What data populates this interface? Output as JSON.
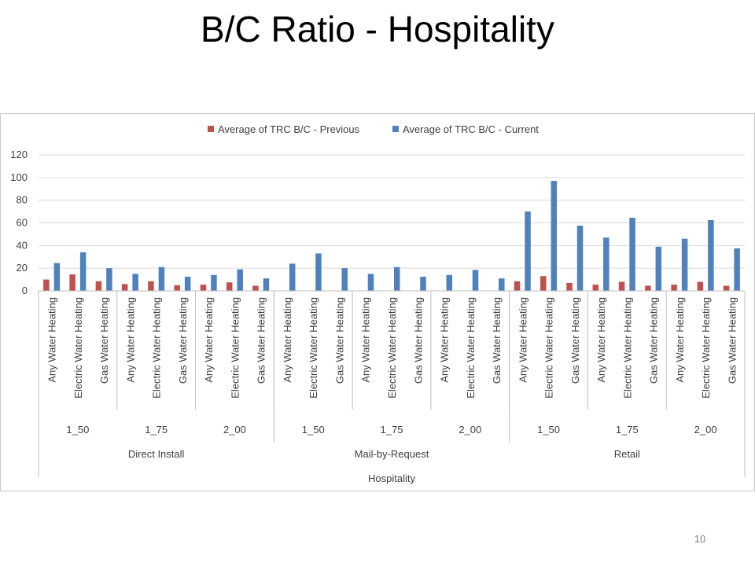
{
  "slide": {
    "title": "B/C Ratio - Hospitality",
    "page_number": "10"
  },
  "chart_data": {
    "type": "bar",
    "title": "",
    "xlabel": "",
    "ylabel": "",
    "ylim": [
      0,
      120
    ],
    "yticks": [
      0,
      20,
      40,
      60,
      80,
      100,
      120
    ],
    "legend_position": "top-center",
    "grid": true,
    "categories": [
      "Any Water Heating",
      "Electric Water Heating",
      "Gas Water Heating",
      "Any Water Heating",
      "Electric Water Heating",
      "Gas Water Heating",
      "Any Water Heating",
      "Electric Water Heating",
      "Gas Water Heating",
      "Any Water Heating",
      "Electric Water Heating",
      "Gas Water Heating",
      "Any Water Heating",
      "Electric Water Heating",
      "Gas Water Heating",
      "Any Water Heating",
      "Electric Water Heating",
      "Gas Water Heating",
      "Any Water Heating",
      "Electric Water Heating",
      "Gas Water Heating",
      "Any Water Heating",
      "Electric Water Heating",
      "Gas Water Heating",
      "Any Water Heating",
      "Electric Water Heating",
      "Gas Water Heating"
    ],
    "level1_groups": [
      "1_50",
      "1_75",
      "2_00",
      "1_50",
      "1_75",
      "2_00",
      "1_50",
      "1_75",
      "2_00"
    ],
    "level2_groups": [
      "Direct Install",
      "Mail-by-Request",
      "Retail"
    ],
    "level3_group": "Hospitality",
    "series": [
      {
        "name": "Average of TRC B/C - Previous",
        "color": "#c0504d",
        "values": [
          10,
          14.5,
          8.5,
          6,
          8.5,
          5,
          5.5,
          7.5,
          4.5,
          0,
          0,
          0,
          0,
          0,
          0,
          0,
          0,
          0,
          8.5,
          13,
          7,
          5.5,
          8,
          4.5,
          5.5,
          8,
          4.5
        ]
      },
      {
        "name": "Average of TRC B/C - Current",
        "color": "#4f81bd",
        "values": [
          24.5,
          34,
          20,
          15,
          21,
          12.5,
          14,
          19,
          11,
          24,
          33,
          20,
          15,
          21,
          12.5,
          14,
          18.5,
          11,
          70,
          97,
          57.5,
          47,
          64.5,
          39,
          46,
          62.5,
          37.5
        ]
      }
    ]
  }
}
